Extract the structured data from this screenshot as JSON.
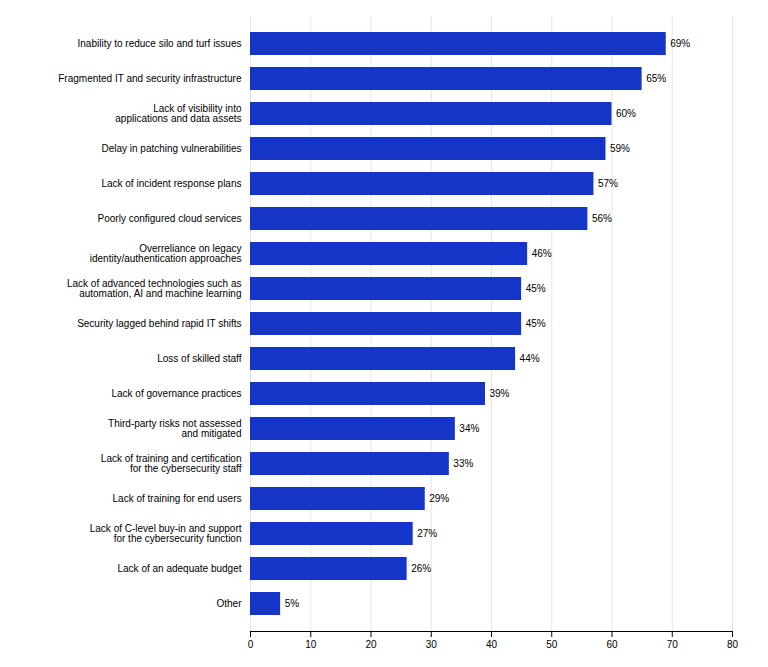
{
  "chart_data": {
    "type": "bar",
    "orientation": "horizontal",
    "categories": [
      "Other",
      "Lack of an adequate budget",
      "Lack of C-level buy-in and support\nfor the cybersecurity function",
      "Lack of training for end users",
      "Lack of training and certification\nfor the cybersecurity staff",
      "Third-party risks not assessed\nand mitigated",
      "Lack of governance practices",
      "Loss of skilled staff",
      "Security lagged behind rapid IT shifts",
      "Lack of advanced technologies such as\nautomation, AI and machine learning",
      "Overreliance on legacy\nidentity/authentication approaches",
      "Poorly configured cloud services",
      "Lack of incident response plans",
      "Delay in patching vulnerabilities",
      "Lack of visibility into\napplications and data assets",
      "Fragmented IT and security infrastructure",
      "Inability to reduce silo and turf issues"
    ],
    "values": [
      5,
      26,
      27,
      29,
      33,
      34,
      39,
      44,
      45,
      45,
      46,
      56,
      57,
      59,
      60,
      65,
      69
    ],
    "value_labels": [
      "5%",
      "26%",
      "27%",
      "29%",
      "33%",
      "34%",
      "39%",
      "44%",
      "45%",
      "45%",
      "46%",
      "56%",
      "57%",
      "59%",
      "60%",
      "65%",
      "69%"
    ],
    "color": "#1535c9",
    "xlim": [
      0,
      80
    ],
    "xticks": [
      0,
      10,
      20,
      30,
      40,
      50,
      60,
      70,
      80
    ],
    "grid": true,
    "data_labels": true
  }
}
